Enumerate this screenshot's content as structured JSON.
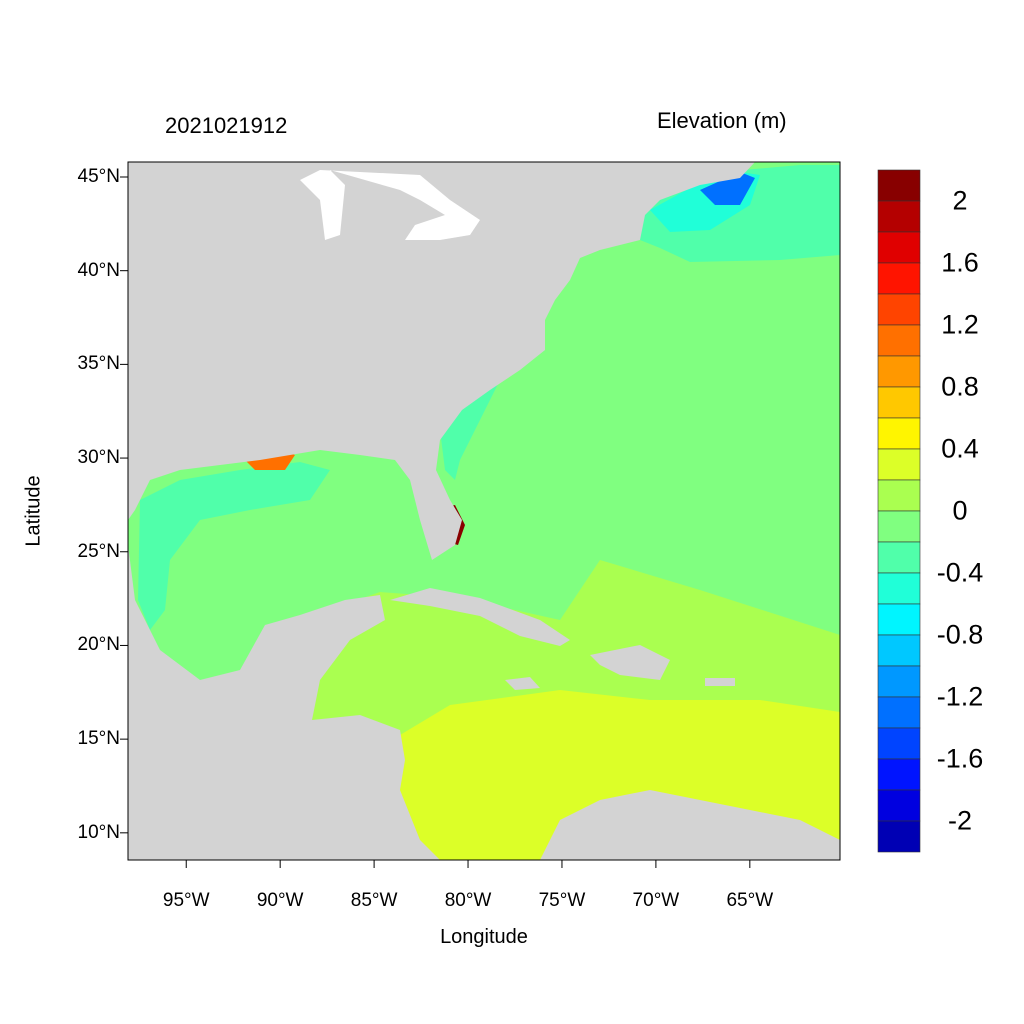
{
  "map": {
    "title": "2021021912",
    "variable_label": "Elevation (m)",
    "xlabel": "Longitude",
    "ylabel": "Latitude",
    "lon_range": [
      -98.1,
      -60.2
    ],
    "lat_range": [
      8.55,
      45.8
    ],
    "lon_ticks": [
      "95°W",
      "90°W",
      "85°W",
      "80°W",
      "75°W",
      "70°W",
      "65°W"
    ],
    "lon_tick_values": [
      -95,
      -90,
      -85,
      -80,
      -75,
      -70,
      -65
    ],
    "lat_ticks": [
      "45°N",
      "40°N",
      "35°N",
      "30°N",
      "25°N",
      "20°N",
      "15°N",
      "10°N"
    ],
    "lat_tick_values": [
      45,
      40,
      35,
      30,
      25,
      20,
      15,
      10
    ],
    "land_color": "#d3d3d3",
    "background_water_color": "#80ff80"
  },
  "colorbar": {
    "labels": [
      "2",
      "1.6",
      "1.2",
      "0.8",
      "0.4",
      "0",
      "-0.4",
      "-0.8",
      "-1.2",
      "-1.6",
      "-2"
    ],
    "colors": [
      "#880000",
      "#b40000",
      "#e00000",
      "#ff1400",
      "#ff4400",
      "#ff7000",
      "#ff9800",
      "#ffc800",
      "#fff500",
      "#dcff28",
      "#aaff50",
      "#80ff80",
      "#50ffaa",
      "#20ffd8",
      "#00f5ff",
      "#00c8ff",
      "#0098ff",
      "#0070ff",
      "#0044ff",
      "#0014ff",
      "#0000e0",
      "#0000b4"
    ]
  }
}
